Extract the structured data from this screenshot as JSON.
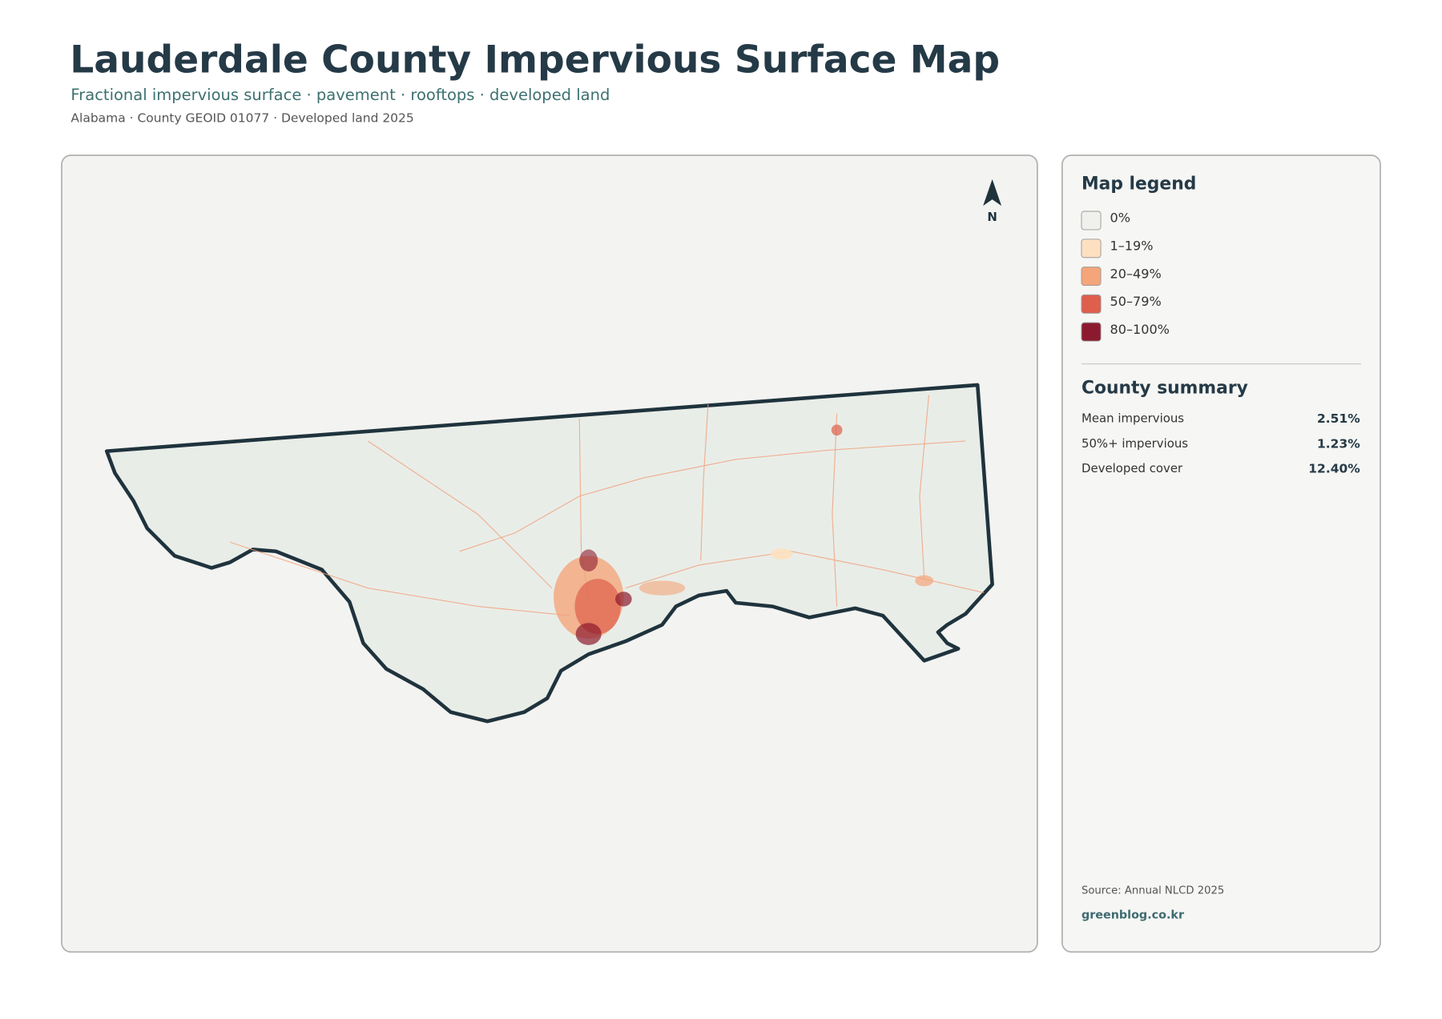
{
  "header": {
    "title": "Lauderdale County Impervious Surface Map",
    "subtitle": "Fractional impervious surface · pavement · rooftops · developed land",
    "meta": "Alabama · County GEOID 01077 · Developed land 2025"
  },
  "map": {
    "north_label": "N"
  },
  "legend": {
    "title": "Map legend",
    "items": [
      {
        "label": "0%",
        "color": "#f0f0ec"
      },
      {
        "label": "1–19%",
        "color": "#fde0c0"
      },
      {
        "label": "20–49%",
        "color": "#f4a57a"
      },
      {
        "label": "50–79%",
        "color": "#de5f4c"
      },
      {
        "label": "80–100%",
        "color": "#8c1a2e"
      }
    ]
  },
  "summary": {
    "title": "County summary",
    "rows": [
      {
        "label": "Mean impervious",
        "value": "2.51%"
      },
      {
        "label": "50%+ impervious",
        "value": "1.23%"
      },
      {
        "label": "Developed cover",
        "value": "12.40%"
      }
    ]
  },
  "footer": {
    "source": "Source: Annual NLCD 2025",
    "credit": "greenblog.co.kr"
  }
}
